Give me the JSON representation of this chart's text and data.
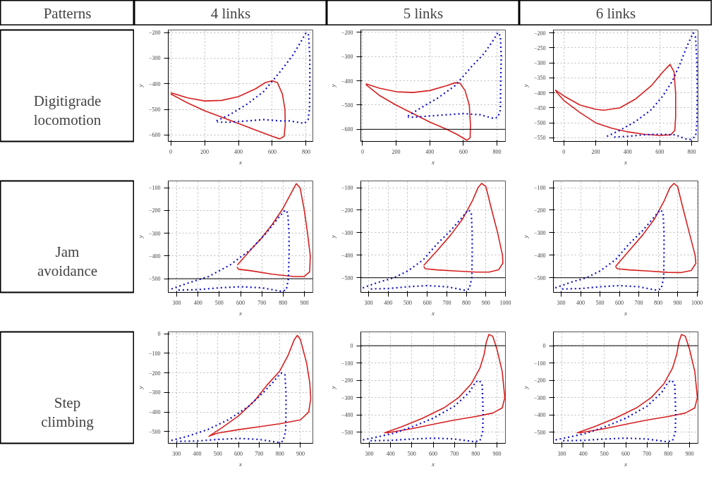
{
  "chart_data": [
    {
      "type": "other",
      "annotations": [
        "Patterns",
        "4 links",
        "5 links",
        "6 links",
        "Digitigrade locomotion",
        "Jam avoidance",
        "Step climbing"
      ]
    },
    {
      "type": "line",
      "xlabel": "x",
      "ylabel": "y",
      "xlim": [
        -15,
        840
      ],
      "ylim": [
        -625,
        -190
      ],
      "xticks": [
        0,
        200,
        400,
        600,
        800
      ],
      "yticks": [
        -600,
        -500,
        -400,
        -300,
        -200
      ],
      "grid": true,
      "series": [
        {
          "color": "#d62020",
          "line_style": "solid",
          "x": [
            0,
            100,
            200,
            300,
            400,
            500,
            560,
            600,
            630,
            660,
            675,
            677,
            670,
            645,
            600,
            500,
            400,
            300,
            200,
            100,
            0
          ],
          "values": [
            -435,
            -455,
            -467,
            -465,
            -450,
            -420,
            -395,
            -388,
            -395,
            -440,
            -500,
            -560,
            -605,
            -615,
            -605,
            -580,
            -555,
            -530,
            -505,
            -475,
            -440
          ]
        },
        {
          "color": "#1010c8",
          "line_style": "dotted",
          "x": [
            270,
            350,
            450,
            550,
            650,
            720,
            770,
            800,
            815,
            822,
            822,
            820,
            812,
            790,
            750,
            700,
            650,
            550,
            450,
            350,
            275
          ],
          "values": [
            -545,
            -520,
            -480,
            -430,
            -350,
            -290,
            -235,
            -200,
            -210,
            -300,
            -400,
            -500,
            -540,
            -555,
            -550,
            -545,
            -545,
            -540,
            -545,
            -550,
            -550
          ]
        }
      ]
    },
    {
      "type": "line",
      "xlabel": "x",
      "ylabel": "y",
      "xlim": [
        -10,
        850
      ],
      "ylim": [
        -650,
        -190
      ],
      "xticks": [
        0,
        200,
        400,
        600,
        800
      ],
      "yticks": [
        -600,
        -500,
        -400,
        -300,
        -200
      ],
      "grid": true,
      "ref_lines": [
        {
          "axis": "y",
          "value": -600
        }
      ],
      "series": [
        {
          "color": "#d62020",
          "line_style": "solid",
          "x": [
            20,
            100,
            200,
            300,
            400,
            500,
            550,
            580,
            610,
            635,
            642,
            640,
            620,
            560,
            500,
            400,
            300,
            200,
            100,
            20
          ],
          "values": [
            -412,
            -430,
            -445,
            -448,
            -440,
            -420,
            -408,
            -410,
            -440,
            -500,
            -580,
            -635,
            -645,
            -620,
            -600,
            -570,
            -535,
            -500,
            -460,
            -415
          ]
        },
        {
          "color": "#1010c8",
          "line_style": "dotted",
          "x": [
            270,
            350,
            450,
            550,
            650,
            720,
            780,
            805,
            820,
            825,
            822,
            820,
            805,
            780,
            700,
            600,
            500,
            400,
            300,
            270
          ],
          "values": [
            -545,
            -510,
            -470,
            -420,
            -340,
            -290,
            -230,
            -200,
            -215,
            -300,
            -400,
            -520,
            -550,
            -555,
            -540,
            -535,
            -540,
            -545,
            -550,
            -550
          ]
        }
      ]
    },
    {
      "type": "line",
      "xlabel": "x",
      "ylabel": "y",
      "xlim": [
        -65,
        840
      ],
      "ylim": [
        -562,
        -190
      ],
      "xticks": [
        0,
        200,
        400,
        600,
        800
      ],
      "yticks": [
        -550,
        -500,
        -450,
        -400,
        -350,
        -300,
        -250,
        -200
      ],
      "grid": true,
      "series": [
        {
          "color": "#d62020",
          "line_style": "solid",
          "x": [
            -55,
            0,
            100,
            200,
            250,
            350,
            450,
            550,
            620,
            665,
            690,
            700,
            700,
            695,
            670,
            600,
            500,
            400,
            300,
            200,
            100,
            0,
            -50
          ],
          "values": [
            -390,
            -410,
            -440,
            -455,
            -458,
            -450,
            -420,
            -375,
            -330,
            -305,
            -330,
            -400,
            -480,
            -525,
            -540,
            -542,
            -538,
            -530,
            -518,
            -500,
            -465,
            -425,
            -395
          ]
        },
        {
          "color": "#1010c8",
          "line_style": "dotted",
          "x": [
            270,
            350,
            450,
            550,
            620,
            680,
            730,
            770,
            810,
            825,
            833,
            835,
            833,
            825,
            795,
            770,
            700,
            600,
            500,
            400,
            300
          ],
          "values": [
            -545,
            -525,
            -495,
            -455,
            -410,
            -360,
            -300,
            -245,
            -200,
            -215,
            -300,
            -400,
            -500,
            -545,
            -555,
            -555,
            -540,
            -538,
            -540,
            -545,
            -548
          ]
        }
      ]
    },
    {
      "type": "line",
      "xlabel": "x",
      "ylabel": "y",
      "xlim": [
        260,
        940
      ],
      "ylim": [
        -560,
        -70
      ],
      "xticks": [
        300,
        400,
        500,
        600,
        700,
        800,
        900
      ],
      "yticks": [
        -500,
        -400,
        -300,
        -200,
        -100
      ],
      "grid": true,
      "ref_lines": [
        {
          "axis": "y",
          "value": -500
        }
      ],
      "series": [
        {
          "color": "#d62020",
          "line_style": "solid",
          "x": [
            585,
            650,
            700,
            750,
            800,
            840,
            862,
            880,
            900,
            915,
            928,
            925,
            900,
            850,
            750,
            650,
            590,
            583
          ],
          "values": [
            -440,
            -370,
            -320,
            -260,
            -190,
            -120,
            -82,
            -100,
            -200,
            -300,
            -400,
            -470,
            -490,
            -490,
            -480,
            -465,
            -458,
            -448
          ]
        },
        {
          "color": "#1010c8",
          "line_style": "dotted",
          "x": [
            275,
            350,
            450,
            550,
            650,
            720,
            780,
            810,
            822,
            828,
            828,
            825,
            815,
            790,
            700,
            600,
            500,
            400,
            300
          ],
          "values": [
            -545,
            -520,
            -490,
            -440,
            -370,
            -300,
            -230,
            -198,
            -210,
            -300,
            -400,
            -500,
            -550,
            -555,
            -540,
            -535,
            -540,
            -548,
            -550
          ]
        }
      ]
    },
    {
      "type": "line",
      "xlabel": "x",
      "ylabel": "y",
      "xlim": [
        260,
        1000
      ],
      "ylim": [
        -565,
        -70
      ],
      "xticks": [
        300,
        400,
        500,
        600,
        700,
        800,
        900,
        1000
      ],
      "yticks": [
        -500,
        -400,
        -300,
        -200,
        -100
      ],
      "grid": true,
      "ref_lines": [
        {
          "axis": "y",
          "value": -500
        }
      ],
      "series": [
        {
          "color": "#d62020",
          "line_style": "solid",
          "x": [
            582,
            650,
            720,
            780,
            830,
            860,
            878,
            900,
            930,
            960,
            985,
            987,
            965,
            916,
            850,
            750,
            650,
            590,
            582
          ],
          "values": [
            -445,
            -380,
            -310,
            -240,
            -160,
            -100,
            -81,
            -95,
            -200,
            -300,
            -400,
            -435,
            -465,
            -475,
            -475,
            -470,
            -465,
            -460,
            -450
          ]
        },
        {
          "color": "#1010c8",
          "line_style": "dotted",
          "x": [
            270,
            350,
            430,
            500,
            580,
            650,
            720,
            780,
            810,
            825,
            830,
            830,
            828,
            815,
            790,
            700,
            600,
            500,
            400,
            300
          ],
          "values": [
            -545,
            -520,
            -500,
            -470,
            -420,
            -350,
            -290,
            -230,
            -198,
            -210,
            -300,
            -400,
            -500,
            -550,
            -555,
            -540,
            -535,
            -540,
            -548,
            -550
          ]
        }
      ]
    },
    {
      "type": "line",
      "xlabel": "x",
      "ylabel": "y",
      "xlim": [
        260,
        1005
      ],
      "ylim": [
        -565,
        -70
      ],
      "xticks": [
        300,
        400,
        500,
        600,
        700,
        800,
        900,
        1000
      ],
      "yticks": [
        -500,
        -400,
        -300,
        -200,
        -100
      ],
      "grid": true,
      "ref_lines": [
        {
          "axis": "y",
          "value": -500
        }
      ],
      "series": [
        {
          "color": "#d62020",
          "line_style": "solid",
          "x": [
            580,
            650,
            720,
            780,
            830,
            860,
            881,
            900,
            930,
            960,
            990,
            994,
            970,
            916,
            850,
            750,
            650,
            590,
            580
          ],
          "values": [
            -450,
            -380,
            -310,
            -240,
            -160,
            -100,
            -81,
            -95,
            -200,
            -300,
            -400,
            -436,
            -468,
            -477,
            -476,
            -470,
            -465,
            -460,
            -452
          ]
        },
        {
          "color": "#1010c8",
          "line_style": "dotted",
          "x": [
            270,
            350,
            430,
            500,
            580,
            650,
            720,
            780,
            810,
            825,
            830,
            830,
            828,
            815,
            790,
            700,
            600,
            500,
            400,
            300
          ],
          "values": [
            -545,
            -520,
            -500,
            -470,
            -420,
            -350,
            -290,
            -230,
            -198,
            -210,
            -300,
            -400,
            -500,
            -550,
            -555,
            -540,
            -535,
            -540,
            -548,
            -550
          ]
        }
      ]
    },
    {
      "type": "line",
      "xlabel": "x",
      "ylabel": "y",
      "xlim": [
        260,
        960
      ],
      "ylim": [
        -560,
        10
      ],
      "xticks": [
        300,
        400,
        500,
        600,
        700,
        800,
        900
      ],
      "yticks": [
        -500,
        -400,
        -300,
        -200,
        -100,
        0
      ],
      "grid": true,
      "series": [
        {
          "color": "#d62020",
          "line_style": "solid",
          "x": [
            455,
            520,
            600,
            680,
            740,
            800,
            840,
            870,
            885,
            900,
            930,
            945,
            950,
            940,
            900,
            800,
            700,
            600,
            500,
            460
          ],
          "values": [
            -525,
            -480,
            -420,
            -340,
            -260,
            -190,
            -110,
            -30,
            -8,
            -30,
            -150,
            -250,
            -330,
            -400,
            -440,
            -460,
            -475,
            -490,
            -508,
            -522
          ]
        },
        {
          "color": "#1010c8",
          "line_style": "dotted",
          "x": [
            275,
            350,
            450,
            550,
            650,
            720,
            770,
            800,
            810,
            825,
            830,
            830,
            828,
            815,
            790,
            700,
            600,
            500,
            400,
            300
          ],
          "values": [
            -545,
            -525,
            -490,
            -440,
            -370,
            -300,
            -245,
            -205,
            -200,
            -210,
            -300,
            -400,
            -500,
            -550,
            -555,
            -540,
            -535,
            -540,
            -548,
            -550
          ]
        }
      ]
    },
    {
      "type": "line",
      "xlabel": "x",
      "ylabel": "y",
      "xlim": [
        260,
        940
      ],
      "ylim": [
        -565,
        80
      ],
      "xticks": [
        300,
        400,
        500,
        600,
        700,
        800,
        900
      ],
      "yticks": [
        -500,
        -400,
        -300,
        -200,
        -100,
        0
      ],
      "grid": true,
      "ref_lines": [
        {
          "axis": "y",
          "value": 0
        }
      ],
      "series": [
        {
          "color": "#d62020",
          "line_style": "solid",
          "x": [
            370,
            450,
            550,
            650,
            720,
            780,
            820,
            840,
            850,
            862,
            880,
            900,
            925,
            937,
            925,
            880,
            800,
            700,
            600,
            500,
            380
          ],
          "values": [
            -505,
            -470,
            -420,
            -360,
            -300,
            -220,
            -130,
            -50,
            20,
            65,
            55,
            -20,
            -150,
            -300,
            -360,
            -390,
            -410,
            -430,
            -455,
            -480,
            -505
          ]
        },
        {
          "color": "#1010c8",
          "line_style": "dotted",
          "x": [
            270,
            330,
            420,
            500,
            600,
            700,
            770,
            800,
            815,
            830,
            833,
            835,
            833,
            820,
            790,
            700,
            600,
            500,
            400,
            300
          ],
          "values": [
            -545,
            -530,
            -505,
            -470,
            -420,
            -350,
            -270,
            -210,
            -200,
            -220,
            -300,
            -400,
            -500,
            -550,
            -555,
            -540,
            -535,
            -540,
            -548,
            -550
          ]
        }
      ]
    },
    {
      "type": "line",
      "xlabel": "x",
      "ylabel": "y",
      "xlim": [
        260,
        940
      ],
      "ylim": [
        -565,
        80
      ],
      "xticks": [
        300,
        400,
        500,
        600,
        700,
        800,
        900
      ],
      "yticks": [
        -500,
        -400,
        -300,
        -200,
        -100,
        0
      ],
      "grid": true,
      "ref_lines": [
        {
          "axis": "y",
          "value": 0
        }
      ],
      "series": [
        {
          "color": "#d62020",
          "line_style": "solid",
          "x": [
            370,
            450,
            550,
            650,
            720,
            780,
            820,
            840,
            850,
            862,
            880,
            900,
            925,
            937,
            925,
            880,
            800,
            700,
            600,
            500,
            380
          ],
          "values": [
            -505,
            -470,
            -420,
            -360,
            -300,
            -220,
            -130,
            -50,
            20,
            65,
            55,
            -20,
            -150,
            -300,
            -360,
            -390,
            -410,
            -430,
            -455,
            -480,
            -505
          ]
        },
        {
          "color": "#1010c8",
          "line_style": "dotted",
          "x": [
            270,
            330,
            420,
            500,
            600,
            700,
            770,
            800,
            815,
            830,
            833,
            835,
            833,
            820,
            790,
            700,
            600,
            500,
            400,
            300
          ],
          "values": [
            -545,
            -530,
            -505,
            -470,
            -420,
            -350,
            -270,
            -210,
            -200,
            -220,
            -300,
            -400,
            -500,
            -550,
            -555,
            -540,
            -535,
            -540,
            -548,
            -550
          ]
        }
      ]
    }
  ]
}
